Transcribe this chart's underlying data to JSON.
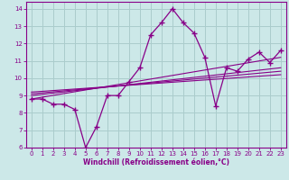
{
  "xlabel": "Windchill (Refroidissement éolien,°C)",
  "xlim": [
    -0.5,
    23.5
  ],
  "ylim": [
    6,
    14.4
  ],
  "xticks": [
    0,
    1,
    2,
    3,
    4,
    5,
    6,
    7,
    8,
    9,
    10,
    11,
    12,
    13,
    14,
    15,
    16,
    17,
    18,
    19,
    20,
    21,
    22,
    23
  ],
  "yticks": [
    6,
    7,
    8,
    9,
    10,
    11,
    12,
    13,
    14
  ],
  "bg_color": "#cce8e8",
  "line_color": "#880088",
  "grid_color": "#aacccc",
  "data_x": [
    0,
    1,
    2,
    3,
    4,
    5,
    6,
    7,
    8,
    9,
    10,
    11,
    12,
    13,
    14,
    15,
    16,
    17,
    18,
    19,
    20,
    21,
    22,
    23
  ],
  "data_y": [
    8.8,
    8.8,
    8.5,
    8.5,
    8.2,
    6.0,
    7.2,
    9.0,
    9.0,
    9.8,
    10.6,
    12.5,
    13.2,
    14.0,
    13.2,
    12.6,
    11.2,
    8.4,
    10.6,
    10.4,
    11.1,
    11.5,
    10.9,
    11.6
  ],
  "reg_lines": [
    {
      "x": [
        0,
        23
      ],
      "y": [
        8.8,
        11.2
      ]
    },
    {
      "x": [
        0,
        23
      ],
      "y": [
        9.0,
        10.6
      ]
    },
    {
      "x": [
        0,
        23
      ],
      "y": [
        9.1,
        10.4
      ]
    },
    {
      "x": [
        0,
        23
      ],
      "y": [
        9.2,
        10.2
      ]
    }
  ]
}
